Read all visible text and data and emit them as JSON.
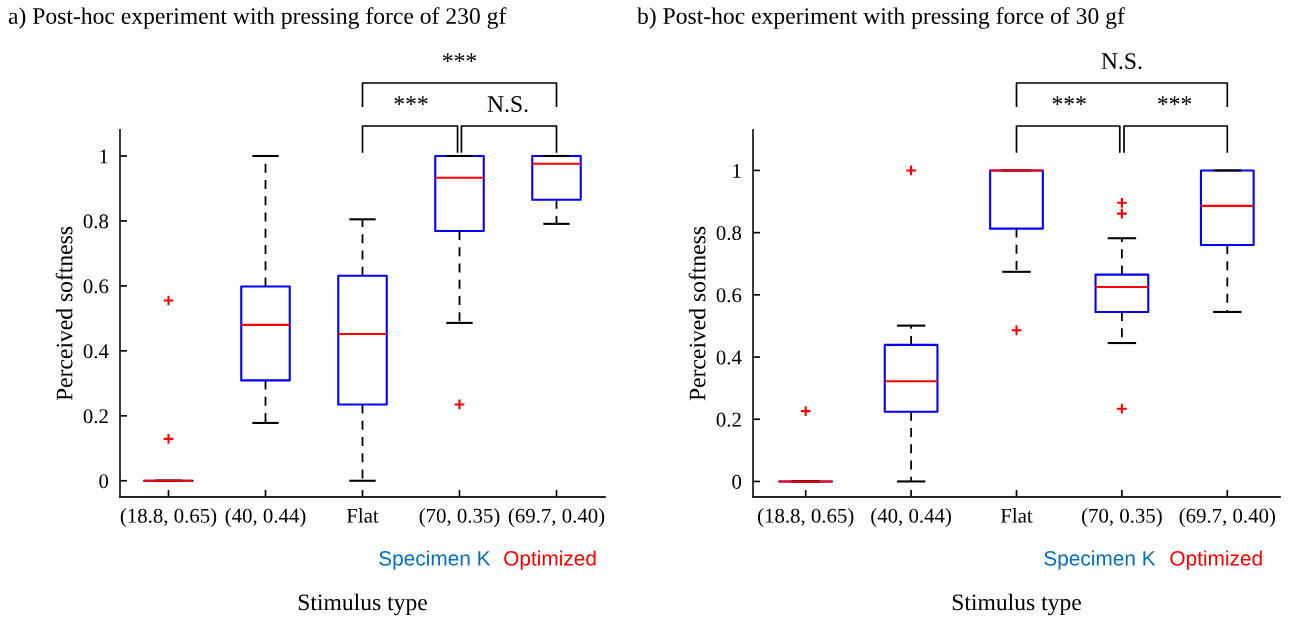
{
  "chart_data": [
    {
      "type": "box",
      "title": "a) Post-hoc experiment with pressing force of 230 gf",
      "xlabel": "Stimulus type",
      "ylabel": "Perceived softness",
      "categories": [
        "(18.8, 0.65)",
        "(40, 0.44)",
        "Flat",
        "(70, 0.35)",
        "(69.7, 0.40)"
      ],
      "ylim": [
        -0.05,
        1.08
      ],
      "yticks": [
        0,
        0.2,
        0.4,
        0.6,
        0.8,
        1
      ],
      "grid": false,
      "series": [
        {
          "color": "#0000ff",
          "boxes": [
            {
              "low": 0,
              "q1": 0,
              "median": 0,
              "q3": 0,
              "high": 0,
              "outliers": [
                0.555,
                0.129
              ]
            },
            {
              "low": 0.178,
              "q1": 0.309,
              "median": 0.48,
              "q3": 0.598,
              "high": 1.0
            },
            {
              "low": 0,
              "q1": 0.235,
              "median": 0.452,
              "q3": 0.631,
              "high": 0.805
            },
            {
              "low": 0.486,
              "q1": 0.769,
              "median": 0.933,
              "q3": 1.0,
              "high": 1.0,
              "outliers": [
                0.235
              ]
            },
            {
              "low": 0.791,
              "q1": 0.865,
              "median": 0.976,
              "q3": 1.0,
              "high": 1.0
            }
          ]
        }
      ],
      "annotations": [
        "***",
        "***",
        "N.S.",
        "Specimen K",
        "Optimized"
      ]
    },
    {
      "type": "box",
      "title": "b) Post-hoc experiment with pressing force of 30 gf",
      "xlabel": "Stimulus type",
      "ylabel": "Perceived softness",
      "categories": [
        "(18.8, 0.65)",
        "(40, 0.44)",
        "Flat",
        "(70, 0.35)",
        "(69.7, 0.40)"
      ],
      "ylim": [
        -0.05,
        1.13
      ],
      "yticks": [
        0,
        0.2,
        0.4,
        0.6,
        0.8,
        1
      ],
      "grid": false,
      "series": [
        {
          "color": "#0000ff",
          "boxes": [
            {
              "low": 0,
              "q1": 0,
              "median": 0,
              "q3": 0,
              "high": 0,
              "outliers": [
                0.226
              ]
            },
            {
              "low": 0,
              "q1": 0.224,
              "median": 0.322,
              "q3": 0.439,
              "high": 0.501,
              "outliers": [
                1.0
              ]
            },
            {
              "low": 0.674,
              "q1": 0.813,
              "median": 1.0,
              "q3": 1.0,
              "high": 1.0,
              "outliers": [
                0.486
              ]
            },
            {
              "low": 0.445,
              "q1": 0.545,
              "median": 0.625,
              "q3": 0.665,
              "high": 0.782,
              "outliers": [
                0.896,
                0.861,
                0.234
              ]
            },
            {
              "low": 0.545,
              "q1": 0.76,
              "median": 0.886,
              "q3": 1.0,
              "high": 1.0
            }
          ]
        }
      ],
      "annotations": [
        "N.S.",
        "***",
        "***",
        "Specimen K",
        "Optimized"
      ]
    }
  ]
}
